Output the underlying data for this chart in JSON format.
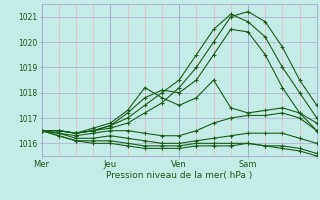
{
  "xlabel": "Pression niveau de la mer( hPa )",
  "bg_color": "#c4ece6",
  "line_color": "#1a5c1a",
  "minor_grid_color": "#e8b4bc",
  "major_grid_color": "#aaaacc",
  "ylim": [
    1015.5,
    1021.5
  ],
  "xlim": [
    0,
    96
  ],
  "xtick_positions": [
    0,
    24,
    48,
    72,
    96
  ],
  "xtick_labels": [
    "Mer",
    "Jeu",
    "Ven",
    "Sam",
    ""
  ],
  "ytick_positions": [
    1016,
    1017,
    1018,
    1019,
    1020,
    1021
  ],
  "series": [
    {
      "x": [
        0,
        6,
        12,
        18,
        24,
        30,
        36,
        42,
        48,
        54,
        60,
        66,
        72,
        78,
        84,
        90,
        96
      ],
      "y": [
        1016.5,
        1016.5,
        1016.4,
        1016.5,
        1016.6,
        1016.8,
        1017.2,
        1017.6,
        1018.2,
        1019.0,
        1020.0,
        1021.0,
        1021.2,
        1020.8,
        1019.8,
        1018.5,
        1017.5
      ]
    },
    {
      "x": [
        0,
        6,
        12,
        18,
        24,
        30,
        36,
        42,
        48,
        54,
        60,
        66,
        72,
        78,
        84,
        90,
        96
      ],
      "y": [
        1016.5,
        1016.5,
        1016.4,
        1016.5,
        1016.7,
        1017.0,
        1017.5,
        1018.0,
        1018.5,
        1019.5,
        1020.5,
        1021.1,
        1020.8,
        1020.2,
        1019.0,
        1018.0,
        1017.0
      ]
    },
    {
      "x": [
        0,
        6,
        12,
        18,
        24,
        30,
        36,
        42,
        48,
        54,
        60,
        66,
        72,
        78,
        84,
        90,
        96
      ],
      "y": [
        1016.5,
        1016.5,
        1016.4,
        1016.5,
        1016.7,
        1017.2,
        1017.8,
        1018.1,
        1018.0,
        1018.5,
        1019.5,
        1020.5,
        1020.4,
        1019.5,
        1018.2,
        1017.2,
        1016.5
      ]
    },
    {
      "x": [
        0,
        6,
        12,
        18,
        24,
        30,
        36,
        42,
        48,
        54,
        60,
        66,
        72,
        78,
        84,
        90,
        96
      ],
      "y": [
        1016.5,
        1016.5,
        1016.4,
        1016.6,
        1016.8,
        1017.3,
        1018.2,
        1017.8,
        1017.5,
        1017.8,
        1018.5,
        1017.4,
        1017.2,
        1017.3,
        1017.4,
        1017.2,
        1016.8
      ]
    },
    {
      "x": [
        0,
        6,
        12,
        18,
        24,
        30,
        36,
        42,
        48,
        54,
        60,
        66,
        72,
        78,
        84,
        90,
        96
      ],
      "y": [
        1016.5,
        1016.4,
        1016.3,
        1016.4,
        1016.5,
        1016.5,
        1016.4,
        1016.3,
        1016.3,
        1016.5,
        1016.8,
        1017.0,
        1017.1,
        1017.1,
        1017.2,
        1017.0,
        1016.5
      ]
    },
    {
      "x": [
        0,
        6,
        12,
        18,
        24,
        30,
        36,
        42,
        48,
        54,
        60,
        66,
        72,
        78,
        84,
        90,
        96
      ],
      "y": [
        1016.5,
        1016.4,
        1016.2,
        1016.2,
        1016.3,
        1016.2,
        1016.1,
        1016.0,
        1016.0,
        1016.1,
        1016.2,
        1016.3,
        1016.4,
        1016.4,
        1016.4,
        1016.2,
        1016.0
      ]
    },
    {
      "x": [
        0,
        6,
        12,
        18,
        24,
        30,
        36,
        42,
        48,
        54,
        60,
        66,
        72,
        78,
        84,
        90,
        96
      ],
      "y": [
        1016.5,
        1016.3,
        1016.1,
        1016.1,
        1016.1,
        1016.0,
        1015.9,
        1015.9,
        1015.9,
        1016.0,
        1016.0,
        1016.0,
        1016.0,
        1015.9,
        1015.9,
        1015.8,
        1015.6
      ]
    },
    {
      "x": [
        0,
        6,
        12,
        18,
        24,
        30,
        36,
        42,
        48,
        54,
        60,
        66,
        72,
        78,
        84,
        90,
        96
      ],
      "y": [
        1016.5,
        1016.3,
        1016.1,
        1016.0,
        1016.0,
        1015.9,
        1015.8,
        1015.8,
        1015.8,
        1015.9,
        1015.9,
        1015.9,
        1016.0,
        1015.9,
        1015.8,
        1015.7,
        1015.5
      ]
    }
  ]
}
